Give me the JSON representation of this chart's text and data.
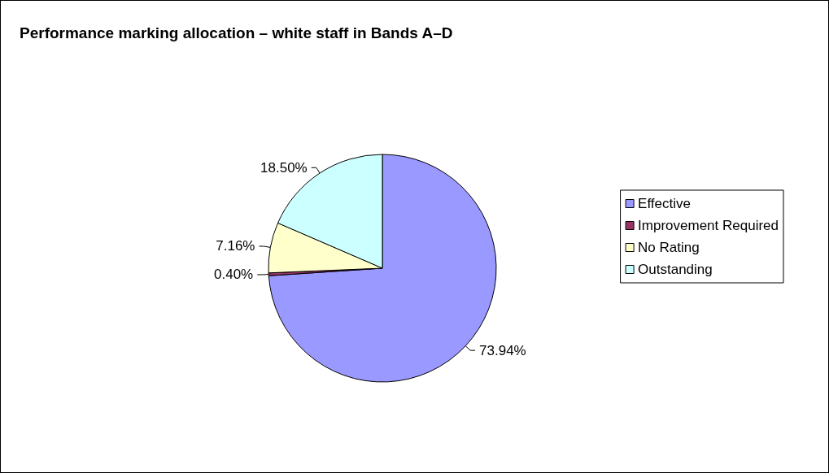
{
  "chart_data": {
    "type": "pie",
    "title": "Performance marking allocation – white staff in Bands A–D",
    "categories": [
      "Effective",
      "Improvement Required",
      "No Rating",
      "Outstanding"
    ],
    "values": [
      73.94,
      0.4,
      7.16,
      18.5
    ],
    "value_labels": [
      "73.94%",
      "0.40%",
      "7.16%",
      "18.50%"
    ],
    "colors": [
      "#9999ff",
      "#993366",
      "#ffffcc",
      "#ccffff"
    ],
    "legend": "right"
  }
}
